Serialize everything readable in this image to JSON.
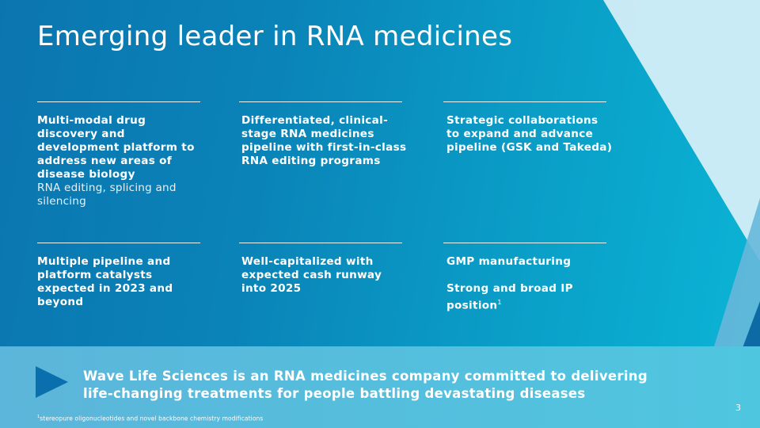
{
  "slide": {
    "title": "Emerging leader in RNA medicines",
    "blocks": [
      {
        "heading": "Multi-modal drug discovery and development platform to address new areas of disease biology",
        "sub": "RNA editing, splicing and silencing"
      },
      {
        "heading": "Differentiated, clinical-stage RNA medicines pipeline with first-in-class RNA editing programs"
      },
      {
        "heading": "Strategic collaborations to expand and advance pipeline (GSK and Takeda)"
      },
      {
        "heading": "Multiple pipeline and platform catalysts expected in 2023 and beyond"
      },
      {
        "heading": "Well-capitalized with expected cash runway into 2025"
      },
      {
        "heading": "GMP manufacturing",
        "heading2": "Strong and broad IP position",
        "heading2_sup": "1"
      }
    ],
    "tagline": "Wave Life Sciences is an RNA medicines company committed to delivering life-changing treatments for people battling devastating diseases",
    "page_number": "3",
    "footnote_marker": "1",
    "footnote": "stereopure oligonucleotides and novel backbone chemistry modifications"
  },
  "colors": {
    "background_start": "#0b75b0",
    "background_end": "#0bb5d6",
    "banner": "#55bedd",
    "arrow": "#0a6fad",
    "text": "#ffffff"
  },
  "icons": {
    "banner_marker": "triangle-arrow-icon"
  }
}
